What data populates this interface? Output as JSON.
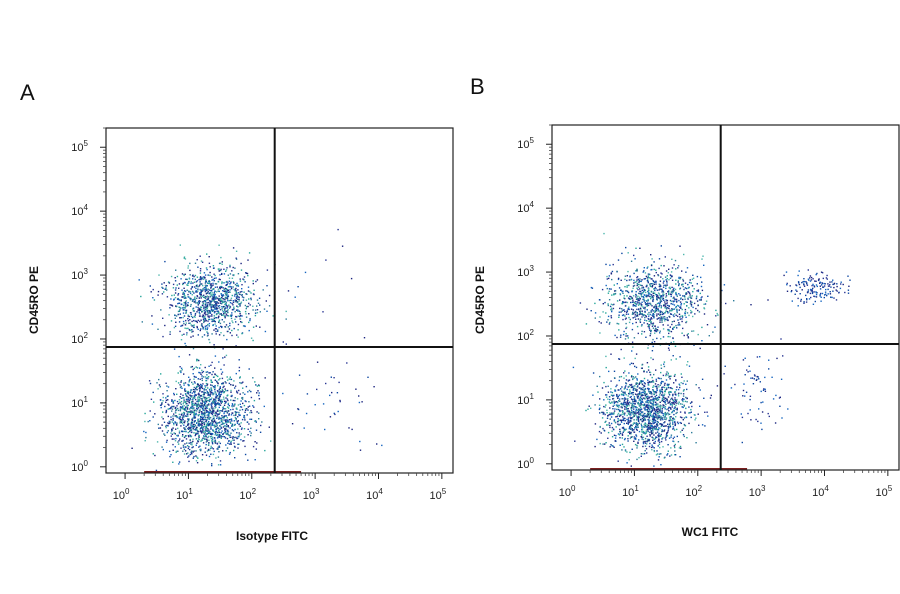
{
  "chart_data": [
    {
      "type": "scatter",
      "panel_label": "A",
      "xlabel": "Isotype FITC",
      "ylabel": "CD45RO PE",
      "xscale": "log",
      "yscale": "log",
      "xlim": [
        0.5,
        150000
      ],
      "ylim": [
        0.8,
        200000
      ],
      "x_ticks": [
        {
          "base": "10",
          "exp": "0"
        },
        {
          "base": "10",
          "exp": "1"
        },
        {
          "base": "10",
          "exp": "2"
        },
        {
          "base": "10",
          "exp": "3"
        },
        {
          "base": "10",
          "exp": "4"
        },
        {
          "base": "10",
          "exp": "5"
        }
      ],
      "y_ticks": [
        {
          "base": "10",
          "exp": "0"
        },
        {
          "base": "10",
          "exp": "1"
        },
        {
          "base": "10",
          "exp": "2"
        },
        {
          "base": "10",
          "exp": "3"
        },
        {
          "base": "10",
          "exp": "4"
        },
        {
          "base": "10",
          "exp": "5"
        }
      ],
      "gate_x": 230,
      "gate_y": 75,
      "clusters": [
        {
          "x_center": 22,
          "y_center": 400,
          "x_spread_log": 0.36,
          "y_spread_log": 0.28,
          "count": 1100
        },
        {
          "x_center": 18,
          "y_center": 7,
          "x_spread_log": 0.34,
          "y_spread_log": 0.32,
          "count": 1600
        },
        {
          "x_center": 1500,
          "y_center": 12,
          "x_spread_log": 0.45,
          "y_spread_log": 0.35,
          "count": 45
        },
        {
          "x_center": 1200,
          "y_center": 600,
          "x_spread_log": 0.35,
          "y_spread_log": 0.4,
          "count": 8
        }
      ],
      "grid": false,
      "legend": "none"
    },
    {
      "type": "scatter",
      "panel_label": "B",
      "xlabel": "WC1 FITC",
      "ylabel": "CD45RO PE",
      "xscale": "log",
      "yscale": "log",
      "xlim": [
        0.5,
        150000
      ],
      "ylim": [
        0.8,
        200000
      ],
      "x_ticks": [
        {
          "base": "10",
          "exp": "0"
        },
        {
          "base": "10",
          "exp": "1"
        },
        {
          "base": "10",
          "exp": "2"
        },
        {
          "base": "10",
          "exp": "3"
        },
        {
          "base": "10",
          "exp": "4"
        },
        {
          "base": "10",
          "exp": "5"
        }
      ],
      "y_ticks": [
        {
          "base": "10",
          "exp": "0"
        },
        {
          "base": "10",
          "exp": "1"
        },
        {
          "base": "10",
          "exp": "2"
        },
        {
          "base": "10",
          "exp": "3"
        },
        {
          "base": "10",
          "exp": "4"
        },
        {
          "base": "10",
          "exp": "5"
        }
      ],
      "gate_x": 230,
      "gate_y": 75,
      "clusters": [
        {
          "x_center": 20,
          "y_center": 350,
          "x_spread_log": 0.4,
          "y_spread_log": 0.3,
          "count": 1000
        },
        {
          "x_center": 15,
          "y_center": 7,
          "x_spread_log": 0.34,
          "y_spread_log": 0.32,
          "count": 1500
        },
        {
          "x_center": 7000,
          "y_center": 600,
          "x_spread_log": 0.22,
          "y_spread_log": 0.12,
          "count": 160
        },
        {
          "x_center": 900,
          "y_center": 15,
          "x_spread_log": 0.22,
          "y_spread_log": 0.35,
          "count": 70
        }
      ],
      "grid": false,
      "legend": "none"
    }
  ]
}
